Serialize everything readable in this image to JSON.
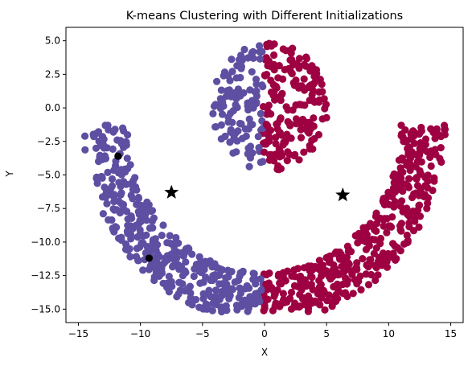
{
  "chart_data": {
    "type": "scatter",
    "title": "K-means Clustering with Different Initializations",
    "xlabel": "X",
    "ylabel": "Y",
    "xlim": [
      -16,
      16
    ],
    "ylim": [
      -16,
      6
    ],
    "xticks": [
      -15,
      -10,
      -5,
      0,
      5,
      10,
      15
    ],
    "yticks": [
      5.0,
      2.5,
      0.0,
      -2.5,
      -5.0,
      -7.5,
      -10.0,
      -12.5,
      -15.0
    ],
    "ytick_labels": [
      "5.0",
      "2.5",
      "0.0",
      "−2.5",
      "−5.0",
      "−7.5",
      "−10.0",
      "−12.5",
      "−15.0"
    ],
    "xtick_labels": [
      "−15",
      "−10",
      "−5",
      "0",
      "5",
      "10",
      "15"
    ],
    "grid": false,
    "legend": "none",
    "clusters": [
      {
        "color": "#5E4FA2",
        "shape": "arc-left",
        "approx_points": 520
      },
      {
        "color": "#9E0142",
        "shape": "arc-right",
        "approx_points": 520
      }
    ],
    "initial_points": {
      "marker": "circle",
      "color": "#000000",
      "points": [
        [
          -11.8,
          -3.6
        ],
        [
          -9.3,
          -11.2
        ]
      ]
    },
    "centroids": {
      "marker": "star",
      "color": "#000000",
      "points": [
        [
          -7.5,
          -6.3
        ],
        [
          6.3,
          -6.5
        ]
      ]
    }
  }
}
